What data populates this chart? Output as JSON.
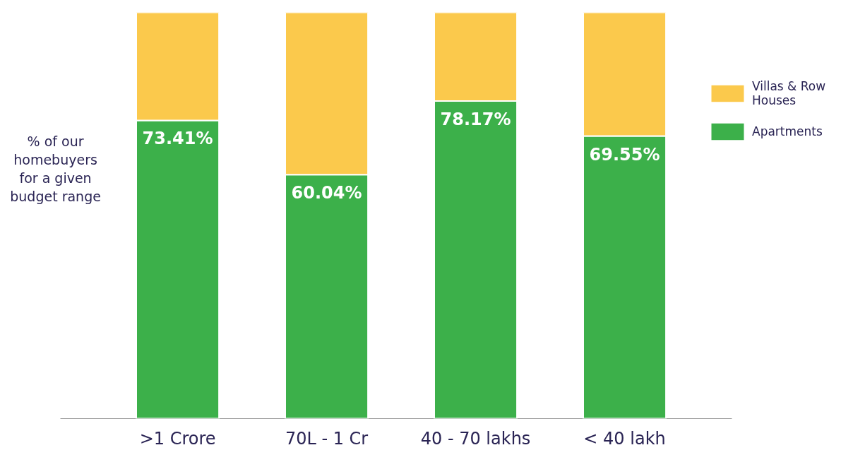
{
  "chart_data": {
    "type": "bar",
    "stacked": true,
    "ylabel": "% of our homebuyers for a given budget range",
    "categories": [
      ">1 Crore",
      "70L - 1 Cr",
      "40 - 70 lakhs",
      "< 40 lakh"
    ],
    "ylim": [
      0,
      100
    ],
    "tick_labels": "x",
    "grid": false,
    "legend": "right",
    "series": [
      {
        "name": "Apartments",
        "color": "#3cb04a",
        "values": [
          73.41,
          60.04,
          78.17,
          69.55
        ],
        "value_labels": [
          "73.41%",
          "60.04%",
          "78.17%",
          "69.55%"
        ]
      },
      {
        "name": "Villas & Row Houses",
        "color": "#fbc94c",
        "values": [
          26.59,
          39.96,
          21.83,
          30.45
        ]
      }
    ]
  }
}
